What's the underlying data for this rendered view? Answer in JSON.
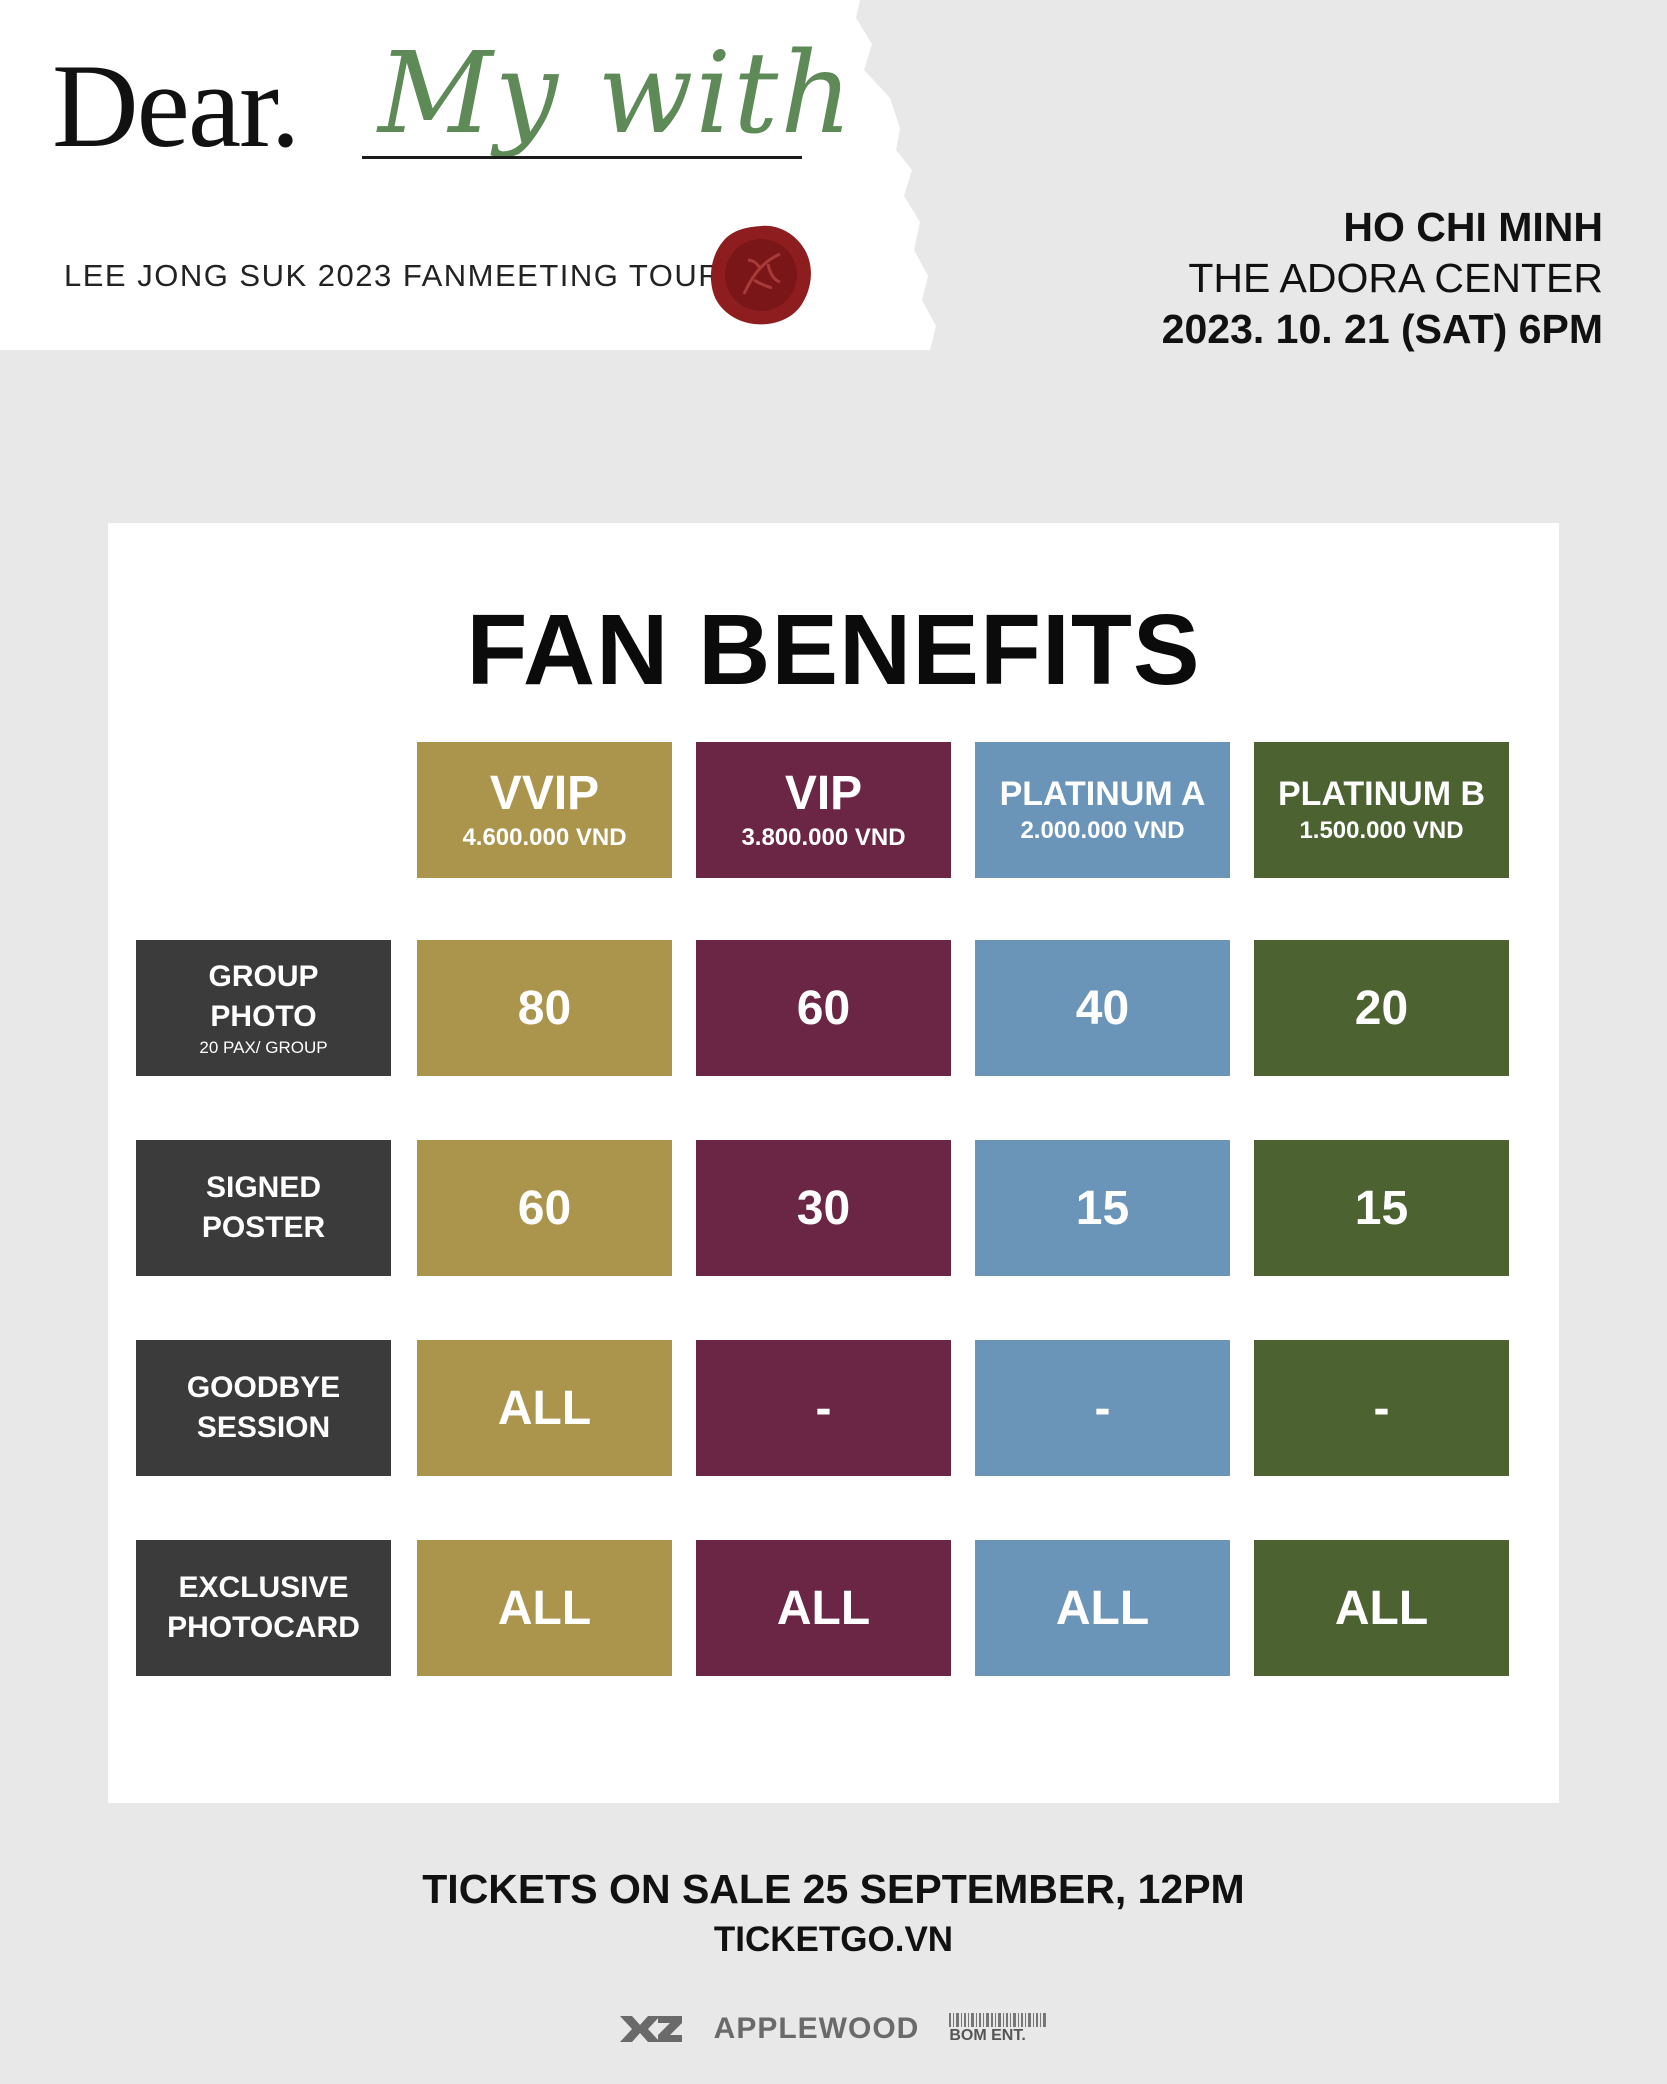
{
  "header": {
    "brand_dear": "Dear.",
    "brand_script": "My with",
    "tour": "LEE JONG SUK 2023 FANMEETING TOUR",
    "city": "HO CHI MINH",
    "venue": "THE ADORA CENTER",
    "datetime": "2023. 10. 21 (SAT) 6PM"
  },
  "benefits": {
    "title": "FAN BENEFITS",
    "tiers": [
      {
        "name": "VVIP",
        "price": "4.600.000 VND",
        "color": "#ab944b"
      },
      {
        "name": "VIP",
        "price": "3.800.000 VND",
        "color": "#6b2545"
      },
      {
        "name": "PLATINUM A",
        "price": "2.000.000 VND",
        "color": "#6a95b9"
      },
      {
        "name": "PLATINUM B",
        "price": "1.500.000 VND",
        "color": "#4c6231"
      }
    ],
    "rows": [
      {
        "line1": "GROUP",
        "line2": "PHOTO",
        "sub": "20 PAX/ GROUP",
        "values": [
          "80",
          "60",
          "40",
          "20"
        ]
      },
      {
        "line1": "SIGNED",
        "line2": "POSTER",
        "sub": "",
        "values": [
          "60",
          "30",
          "15",
          "15"
        ]
      },
      {
        "line1": "GOODBYE",
        "line2": "SESSION",
        "sub": "",
        "values": [
          "ALL",
          "-",
          "-",
          "-"
        ]
      },
      {
        "line1": "EXCLUSIVE",
        "line2": "PHOTOCARD",
        "sub": "",
        "values": [
          "ALL",
          "ALL",
          "ALL",
          "ALL"
        ]
      }
    ],
    "row_label_color": "#3b3b3b"
  },
  "footer": {
    "sale": "TICKETS ON SALE 25 SEPTEMBER, 12PM",
    "site": "TICKETGO.VN",
    "logo_hz": "HZ",
    "logo_applewood": "APPLEWOOD",
    "logo_bom": "BOM ENT."
  }
}
